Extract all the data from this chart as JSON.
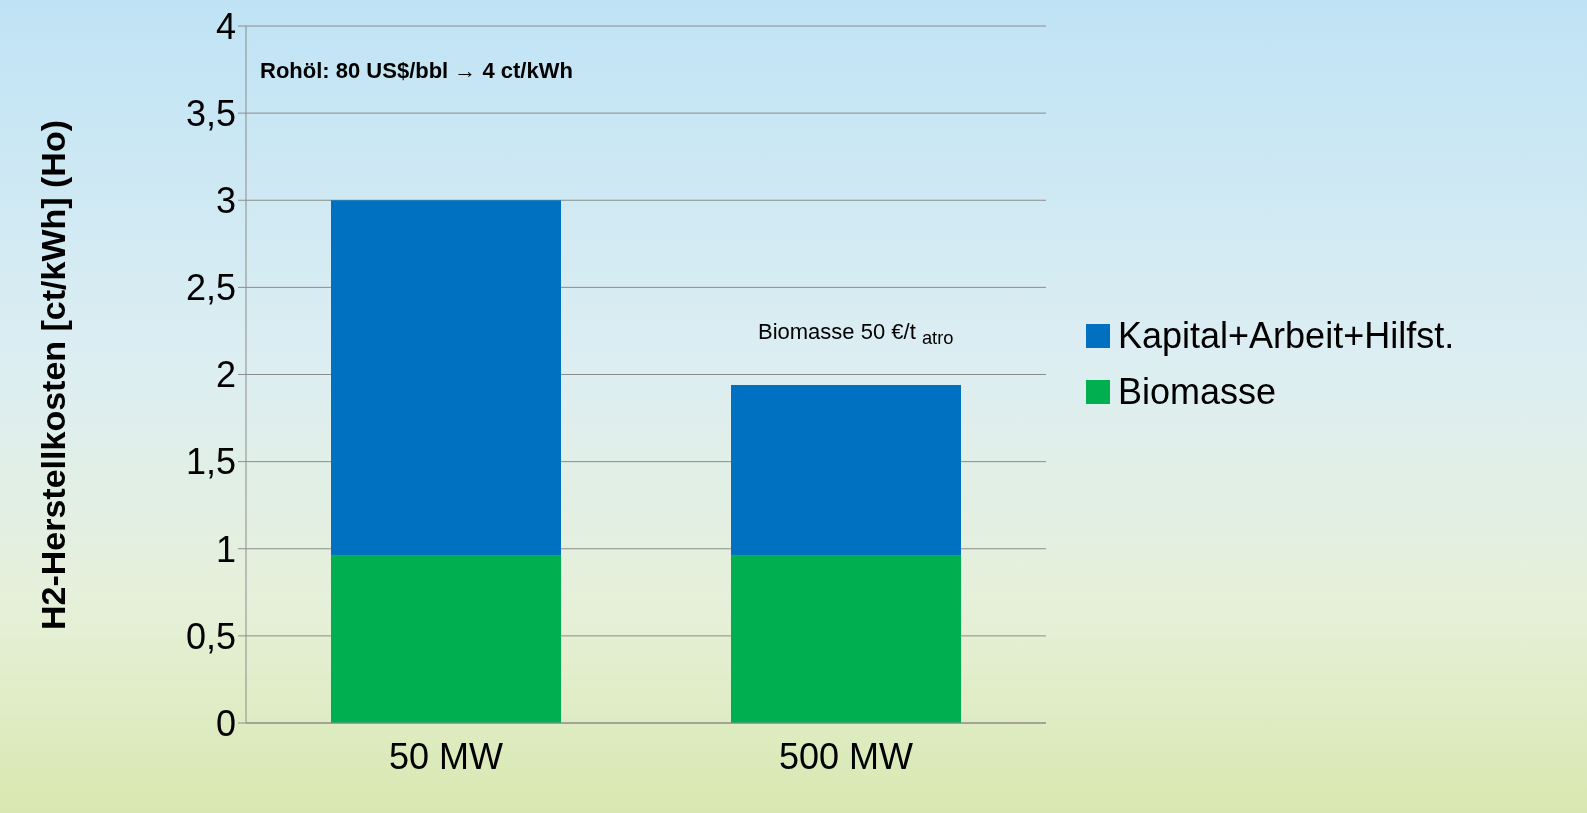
{
  "chart_data": {
    "type": "bar",
    "ylabel": "H2-Herstellkosten [ct/kWh] (Ho)",
    "categories": [
      "50 MW",
      "500 MW"
    ],
    "stacked": true,
    "series": [
      {
        "name": "Biomasse",
        "color": "#00b050",
        "values": [
          0.96,
          0.96
        ]
      },
      {
        "name": "Kapital+Arbeit+Hilfst.",
        "color": "#0070c0",
        "values": [
          2.04,
          0.98
        ]
      }
    ],
    "ylim": [
      0,
      4
    ],
    "yticks": [
      0,
      {
        "value": 0.5,
        "label": "0,5"
      },
      1,
      {
        "value": 1.5,
        "label": "1,5"
      },
      2,
      {
        "value": 2.5,
        "label": "2,5"
      },
      3,
      {
        "value": 3.5,
        "label": "3,5"
      },
      4
    ],
    "grid": "y",
    "legend": "right",
    "annotations": [
      "Rohöl: 80 US$/bbl → 4 ct/kWh",
      "Biomasse 50 €/t $_{atro}$"
    ]
  }
}
